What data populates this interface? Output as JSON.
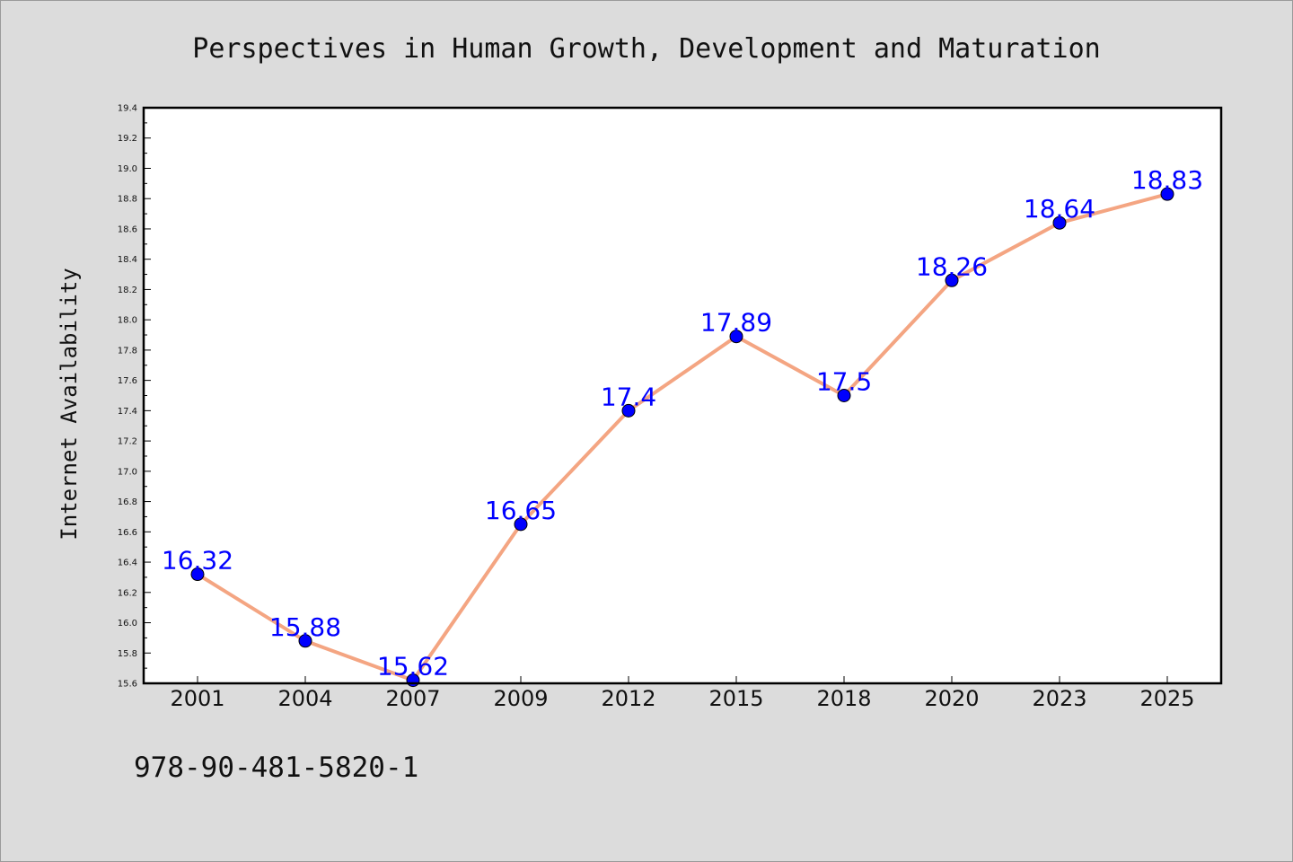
{
  "chart_data": {
    "type": "line",
    "title": "Perspectives in Human Growth, Development and Maturation",
    "xlabel": "",
    "ylabel": "Internet Availability",
    "categories": [
      "2001",
      "2004",
      "2007",
      "2009",
      "2012",
      "2015",
      "2018",
      "2020",
      "2023",
      "2025"
    ],
    "series": [
      {
        "values": [
          16.32,
          15.88,
          15.62,
          16.65,
          17.4,
          17.89,
          17.5,
          18.26,
          18.64,
          18.83
        ],
        "data_labels": [
          "16.32",
          "15.88",
          "15.62",
          "16.65",
          "17.4",
          "17.89",
          "17.5",
          "18.26",
          "18.64",
          "18.83"
        ],
        "line_color": "#f4a582",
        "marker_color": "#0000ff",
        "label_color": "#0000ff"
      }
    ],
    "ylim": [
      15.6,
      19.4
    ],
    "yticks": [
      15.6,
      15.8,
      16.0,
      16.2,
      16.4,
      16.6,
      16.8,
      17.0,
      17.2,
      17.4,
      17.6,
      17.8,
      18.0,
      18.2,
      18.4,
      18.6,
      18.8,
      19.0,
      19.2,
      19.4
    ],
    "ytick_labels": [
      "15.6",
      "15.8",
      "16.0",
      "16.2",
      "16.4",
      "16.6",
      "16.8",
      "17.0",
      "17.2",
      "17.4",
      "17.6",
      "17.8",
      "18.0",
      "18.2",
      "18.4",
      "18.6",
      "18.8",
      "19.0",
      "19.2",
      "19.4"
    ],
    "grid": false,
    "legend": "none",
    "background_color": "#dcdcdc",
    "plot_background_color": "#ffffff"
  },
  "footnote": "978-90-481-5820-1"
}
